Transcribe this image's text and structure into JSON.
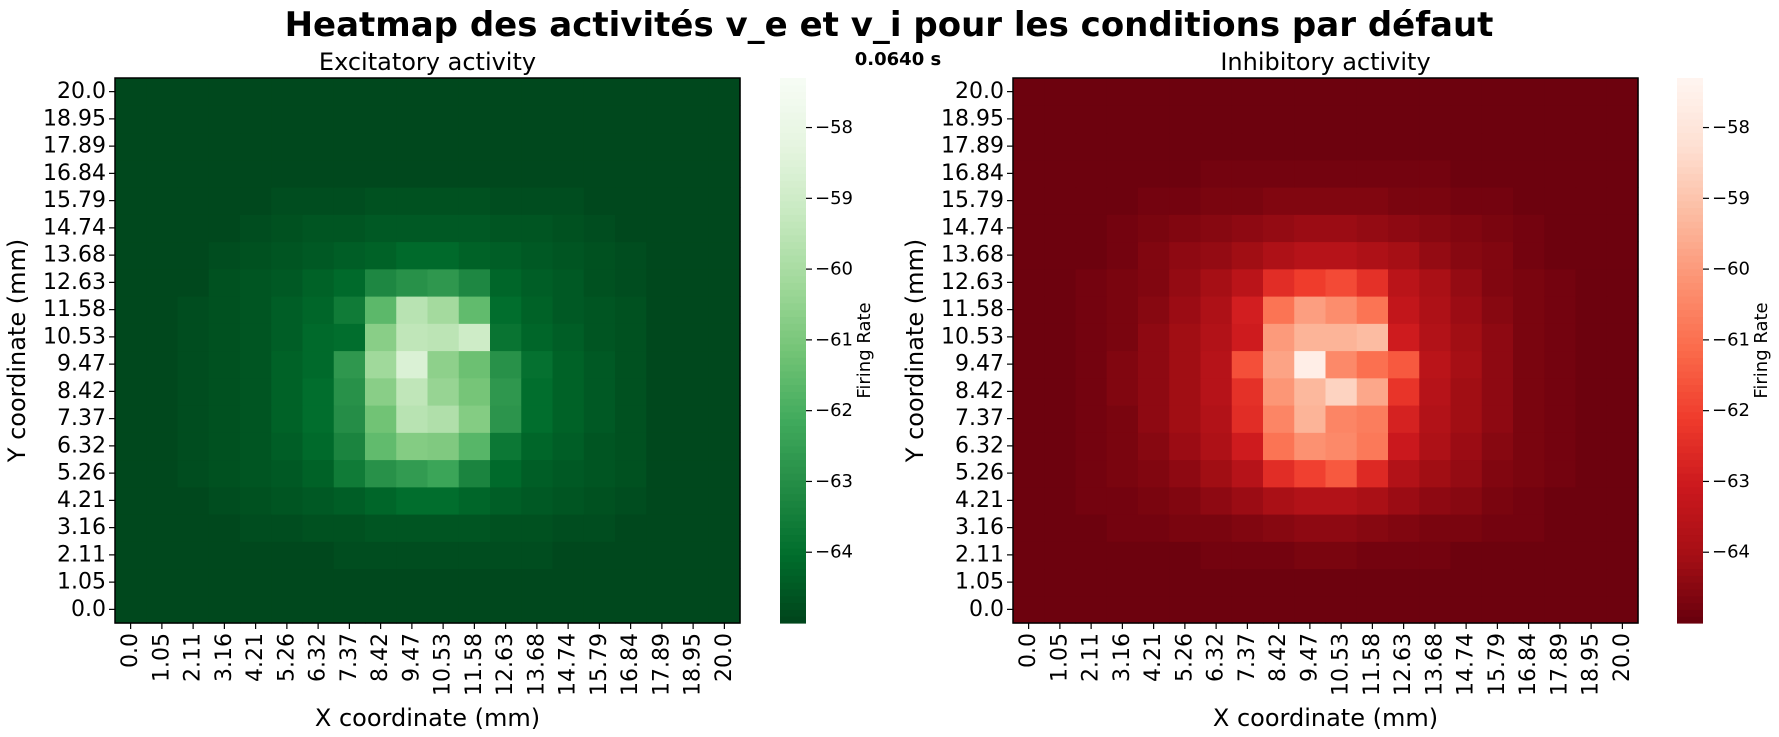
{
  "figure": {
    "title": "Heatmap des activités v_e et v_i pour les conditions par défaut",
    "time_label": "0.0640 s"
  },
  "chart_data": [
    {
      "type": "heatmap",
      "id": "excitatory",
      "title": "Excitatory activity",
      "xlabel": "X coordinate (mm)",
      "ylabel": "Y coordinate (mm)",
      "x_ticks": [
        "0.0",
        "1.05",
        "2.11",
        "3.16",
        "4.21",
        "5.26",
        "6.32",
        "7.37",
        "8.42",
        "9.47",
        "10.53",
        "11.58",
        "12.63",
        "13.68",
        "14.74",
        "15.79",
        "16.84",
        "17.89",
        "18.95",
        "20.0"
      ],
      "y_ticks": [
        "0.0",
        "1.05",
        "2.11",
        "3.16",
        "4.21",
        "5.26",
        "6.32",
        "7.37",
        "8.42",
        "9.47",
        "10.53",
        "11.58",
        "12.63",
        "13.68",
        "14.74",
        "15.79",
        "16.84",
        "17.89",
        "18.95",
        "20.0"
      ],
      "colormap": "Greens_r",
      "colorbar": {
        "label": "Firing Rate",
        "range": [
          -65.0,
          -57.3
        ],
        "ticks": [
          -64,
          -63,
          -62,
          -61,
          -60,
          -59,
          -58
        ]
      },
      "values": [
        [
          -64.9,
          -64.9,
          -64.9,
          -64.9,
          -64.9,
          -64.9,
          -64.9,
          -64.9,
          -64.9,
          -64.9,
          -64.9,
          -64.9,
          -64.9,
          -64.9,
          -64.9,
          -64.9,
          -64.9,
          -64.9,
          -64.9,
          -64.9
        ],
        [
          -64.9,
          -64.9,
          -64.9,
          -64.9,
          -64.9,
          -64.9,
          -64.9,
          -64.9,
          -64.9,
          -64.9,
          -64.9,
          -64.9,
          -64.9,
          -64.9,
          -64.9,
          -64.9,
          -64.9,
          -64.9,
          -64.9,
          -64.9
        ],
        [
          -64.9,
          -64.9,
          -64.9,
          -64.9,
          -64.9,
          -64.9,
          -64.9,
          -64.8,
          -64.8,
          -64.8,
          -64.8,
          -64.8,
          -64.8,
          -64.8,
          -64.9,
          -64.9,
          -64.9,
          -64.9,
          -64.9,
          -64.9
        ],
        [
          -64.9,
          -64.9,
          -64.9,
          -64.9,
          -64.8,
          -64.8,
          -64.7,
          -64.7,
          -64.6,
          -64.6,
          -64.6,
          -64.6,
          -64.7,
          -64.7,
          -64.8,
          -64.8,
          -64.9,
          -64.9,
          -64.9,
          -64.9
        ],
        [
          -64.9,
          -64.9,
          -64.9,
          -64.8,
          -64.7,
          -64.6,
          -64.5,
          -64.4,
          -64.2,
          -64.0,
          -64.0,
          -64.2,
          -64.4,
          -64.5,
          -64.6,
          -64.7,
          -64.8,
          -64.9,
          -64.9,
          -64.9
        ],
        [
          -64.9,
          -64.9,
          -64.8,
          -64.7,
          -64.6,
          -64.5,
          -64.3,
          -63.6,
          -62.9,
          -62.6,
          -62.3,
          -63.3,
          -64.1,
          -64.4,
          -64.5,
          -64.6,
          -64.7,
          -64.9,
          -64.9,
          -64.9
        ],
        [
          -64.9,
          -64.9,
          -64.8,
          -64.7,
          -64.6,
          -64.4,
          -64.1,
          -63.3,
          -61.5,
          -60.8,
          -60.9,
          -61.7,
          -63.7,
          -64.2,
          -64.4,
          -64.6,
          -64.7,
          -64.9,
          -64.9,
          -64.9
        ],
        [
          -64.9,
          -64.9,
          -64.8,
          -64.7,
          -64.6,
          -64.3,
          -64.0,
          -63.0,
          -61.2,
          -59.6,
          -59.8,
          -60.8,
          -62.8,
          -64.0,
          -64.3,
          -64.5,
          -64.7,
          -64.9,
          -64.9,
          -64.9
        ],
        [
          -64.9,
          -64.9,
          -64.8,
          -64.7,
          -64.6,
          -64.3,
          -64.0,
          -62.9,
          -60.7,
          -59.4,
          -60.4,
          -61.1,
          -62.7,
          -64.0,
          -64.3,
          -64.5,
          -64.7,
          -64.9,
          -64.9,
          -64.9
        ],
        [
          -64.9,
          -64.9,
          -64.8,
          -64.7,
          -64.6,
          -64.3,
          -64.1,
          -62.7,
          -60.2,
          -58.6,
          -60.6,
          -61.3,
          -62.9,
          -63.9,
          -64.3,
          -64.5,
          -64.7,
          -64.9,
          -64.9,
          -64.9
        ],
        [
          -64.9,
          -64.9,
          -64.8,
          -64.7,
          -64.6,
          -64.4,
          -64.1,
          -64.0,
          -60.7,
          -59.4,
          -59.5,
          -59.0,
          -63.8,
          -64.2,
          -64.4,
          -64.6,
          -64.7,
          -64.9,
          -64.9,
          -64.9
        ],
        [
          -64.9,
          -64.9,
          -64.8,
          -64.7,
          -64.6,
          -64.4,
          -64.2,
          -63.6,
          -61.6,
          -59.6,
          -60.1,
          -61.5,
          -64.0,
          -64.3,
          -64.5,
          -64.6,
          -64.7,
          -64.9,
          -64.9,
          -64.9
        ],
        [
          -64.9,
          -64.9,
          -64.9,
          -64.7,
          -64.6,
          -64.5,
          -64.3,
          -64.1,
          -63.2,
          -62.9,
          -62.7,
          -63.2,
          -64.2,
          -64.4,
          -64.5,
          -64.7,
          -64.8,
          -64.9,
          -64.9,
          -64.9
        ],
        [
          -64.9,
          -64.9,
          -64.9,
          -64.8,
          -64.7,
          -64.6,
          -64.5,
          -64.4,
          -64.3,
          -64.1,
          -64.1,
          -64.3,
          -64.4,
          -64.5,
          -64.6,
          -64.7,
          -64.8,
          -64.9,
          -64.9,
          -64.9
        ],
        [
          -64.9,
          -64.9,
          -64.9,
          -64.9,
          -64.8,
          -64.7,
          -64.6,
          -64.6,
          -64.5,
          -64.5,
          -64.5,
          -64.5,
          -64.6,
          -64.6,
          -64.7,
          -64.8,
          -64.9,
          -64.9,
          -64.9,
          -64.9
        ],
        [
          -64.9,
          -64.9,
          -64.9,
          -64.9,
          -64.9,
          -64.8,
          -64.8,
          -64.8,
          -64.7,
          -64.7,
          -64.7,
          -64.7,
          -64.8,
          -64.8,
          -64.8,
          -64.9,
          -64.9,
          -64.9,
          -64.9,
          -64.9
        ],
        [
          -64.9,
          -64.9,
          -64.9,
          -64.9,
          -64.9,
          -64.9,
          -64.9,
          -64.9,
          -64.9,
          -64.9,
          -64.9,
          -64.9,
          -64.9,
          -64.9,
          -64.9,
          -64.9,
          -64.9,
          -64.9,
          -64.9,
          -64.9
        ],
        [
          -64.9,
          -64.9,
          -64.9,
          -64.9,
          -64.9,
          -64.9,
          -64.9,
          -64.9,
          -64.9,
          -64.9,
          -64.9,
          -64.9,
          -64.9,
          -64.9,
          -64.9,
          -64.9,
          -64.9,
          -64.9,
          -64.9,
          -64.9
        ],
        [
          -64.9,
          -64.9,
          -64.9,
          -64.9,
          -64.9,
          -64.9,
          -64.9,
          -64.9,
          -64.9,
          -64.9,
          -64.9,
          -64.9,
          -64.9,
          -64.9,
          -64.9,
          -64.9,
          -64.9,
          -64.9,
          -64.9,
          -64.9
        ],
        [
          -64.9,
          -64.9,
          -64.9,
          -64.9,
          -64.9,
          -64.9,
          -64.9,
          -64.9,
          -64.9,
          -64.9,
          -64.9,
          -64.9,
          -64.9,
          -64.9,
          -64.9,
          -64.9,
          -64.9,
          -64.9,
          -64.9,
          -64.9
        ]
      ]
    },
    {
      "type": "heatmap",
      "id": "inhibitory",
      "title": "Inhibitory activity",
      "xlabel": "X coordinate (mm)",
      "ylabel": "Y coordinate (mm)",
      "x_ticks": [
        "0.0",
        "1.05",
        "2.11",
        "3.16",
        "4.21",
        "5.26",
        "6.32",
        "7.37",
        "8.42",
        "9.47",
        "10.53",
        "11.58",
        "12.63",
        "13.68",
        "14.74",
        "15.79",
        "16.84",
        "17.89",
        "18.95",
        "20.0"
      ],
      "y_ticks": [
        "0.0",
        "1.05",
        "2.11",
        "3.16",
        "4.21",
        "5.26",
        "6.32",
        "7.37",
        "8.42",
        "9.47",
        "10.53",
        "11.58",
        "12.63",
        "13.68",
        "14.74",
        "15.79",
        "16.84",
        "17.89",
        "18.95",
        "20.0"
      ],
      "colormap": "Reds_r",
      "colorbar": {
        "label": "Firing Rate",
        "range": [
          -65.0,
          -57.3
        ],
        "ticks": [
          -64,
          -63,
          -62,
          -61,
          -60,
          -59,
          -58
        ]
      },
      "values": [
        [
          -64.9,
          -64.9,
          -64.9,
          -64.9,
          -64.9,
          -64.9,
          -64.9,
          -64.9,
          -64.9,
          -64.9,
          -64.9,
          -64.9,
          -64.9,
          -64.9,
          -64.9,
          -64.9,
          -64.9,
          -64.9,
          -64.9,
          -64.9
        ],
        [
          -64.9,
          -64.9,
          -64.9,
          -64.9,
          -64.9,
          -64.9,
          -64.9,
          -64.9,
          -64.9,
          -64.9,
          -64.9,
          -64.9,
          -64.9,
          -64.9,
          -64.9,
          -64.9,
          -64.9,
          -64.9,
          -64.9,
          -64.9
        ],
        [
          -64.9,
          -64.9,
          -64.9,
          -64.9,
          -64.9,
          -64.9,
          -64.8,
          -64.8,
          -64.8,
          -64.7,
          -64.7,
          -64.8,
          -64.8,
          -64.8,
          -64.9,
          -64.9,
          -64.9,
          -64.9,
          -64.9,
          -64.9
        ],
        [
          -64.9,
          -64.9,
          -64.9,
          -64.8,
          -64.8,
          -64.7,
          -64.7,
          -64.6,
          -64.5,
          -64.4,
          -64.4,
          -64.5,
          -64.6,
          -64.7,
          -64.7,
          -64.8,
          -64.8,
          -64.9,
          -64.9,
          -64.9
        ],
        [
          -64.9,
          -64.9,
          -64.8,
          -64.8,
          -64.7,
          -64.6,
          -64.4,
          -64.2,
          -63.9,
          -63.7,
          -63.7,
          -63.9,
          -64.2,
          -64.4,
          -64.5,
          -64.7,
          -64.8,
          -64.9,
          -64.9,
          -64.9
        ],
        [
          -64.9,
          -64.9,
          -64.8,
          -64.7,
          -64.6,
          -64.4,
          -64.1,
          -63.6,
          -62.5,
          -62.0,
          -61.5,
          -62.6,
          -63.7,
          -64.1,
          -64.3,
          -64.6,
          -64.7,
          -64.8,
          -64.9,
          -64.9
        ],
        [
          -64.9,
          -64.9,
          -64.8,
          -64.7,
          -64.5,
          -64.2,
          -63.8,
          -63.0,
          -60.9,
          -60.2,
          -60.4,
          -60.8,
          -63.1,
          -63.8,
          -64.2,
          -64.5,
          -64.7,
          -64.8,
          -64.9,
          -64.9
        ],
        [
          -64.9,
          -64.9,
          -64.8,
          -64.7,
          -64.4,
          -64.1,
          -63.7,
          -62.5,
          -60.5,
          -59.4,
          -60.5,
          -60.7,
          -62.8,
          -63.7,
          -64.1,
          -64.4,
          -64.7,
          -64.8,
          -64.9,
          -64.9
        ],
        [
          -64.9,
          -64.9,
          -64.8,
          -64.6,
          -64.4,
          -64.1,
          -63.6,
          -62.4,
          -60.1,
          -59.3,
          -58.6,
          -59.7,
          -62.3,
          -63.6,
          -64.1,
          -64.4,
          -64.7,
          -64.8,
          -64.9,
          -64.9
        ],
        [
          -64.9,
          -64.9,
          -64.8,
          -64.6,
          -64.4,
          -64.1,
          -63.6,
          -61.7,
          -59.8,
          -57.6,
          -60.4,
          -61.0,
          -61.5,
          -63.5,
          -64.0,
          -64.4,
          -64.7,
          -64.8,
          -64.9,
          -64.9
        ],
        [
          -64.9,
          -64.9,
          -64.8,
          -64.7,
          -64.4,
          -64.1,
          -63.7,
          -63.0,
          -60.0,
          -59.4,
          -59.4,
          -59.2,
          -63.0,
          -63.7,
          -64.1,
          -64.4,
          -64.7,
          -64.8,
          -64.9,
          -64.9
        ],
        [
          -64.9,
          -64.9,
          -64.8,
          -64.7,
          -64.5,
          -64.2,
          -63.8,
          -62.9,
          -60.9,
          -59.9,
          -60.3,
          -60.9,
          -63.3,
          -63.8,
          -64.2,
          -64.5,
          -64.7,
          -64.8,
          -64.9,
          -64.9
        ],
        [
          -64.9,
          -64.9,
          -64.8,
          -64.7,
          -64.6,
          -64.3,
          -64.0,
          -63.5,
          -62.5,
          -62.1,
          -61.8,
          -62.4,
          -63.5,
          -63.9,
          -64.3,
          -64.6,
          -64.7,
          -64.8,
          -64.9,
          -64.9
        ],
        [
          -64.9,
          -64.9,
          -64.9,
          -64.8,
          -64.6,
          -64.4,
          -64.3,
          -64.1,
          -63.8,
          -63.6,
          -63.6,
          -63.8,
          -64.0,
          -64.3,
          -64.5,
          -64.6,
          -64.8,
          -64.9,
          -64.9,
          -64.9
        ],
        [
          -64.9,
          -64.9,
          -64.9,
          -64.8,
          -64.7,
          -64.6,
          -64.5,
          -64.4,
          -64.3,
          -64.2,
          -64.2,
          -64.3,
          -64.4,
          -64.5,
          -64.6,
          -64.7,
          -64.8,
          -64.9,
          -64.9,
          -64.9
        ],
        [
          -64.9,
          -64.9,
          -64.9,
          -64.9,
          -64.8,
          -64.8,
          -64.7,
          -64.7,
          -64.6,
          -64.6,
          -64.6,
          -64.6,
          -64.7,
          -64.7,
          -64.8,
          -64.8,
          -64.9,
          -64.9,
          -64.9,
          -64.9
        ],
        [
          -64.9,
          -64.9,
          -64.9,
          -64.9,
          -64.9,
          -64.9,
          -64.8,
          -64.8,
          -64.8,
          -64.8,
          -64.8,
          -64.8,
          -64.8,
          -64.8,
          -64.9,
          -64.9,
          -64.9,
          -64.9,
          -64.9,
          -64.9
        ],
        [
          -64.9,
          -64.9,
          -64.9,
          -64.9,
          -64.9,
          -64.9,
          -64.9,
          -64.9,
          -64.9,
          -64.9,
          -64.9,
          -64.9,
          -64.9,
          -64.9,
          -64.9,
          -64.9,
          -64.9,
          -64.9,
          -64.9,
          -64.9
        ],
        [
          -64.9,
          -64.9,
          -64.9,
          -64.9,
          -64.9,
          -64.9,
          -64.9,
          -64.9,
          -64.9,
          -64.9,
          -64.9,
          -64.9,
          -64.9,
          -64.9,
          -64.9,
          -64.9,
          -64.9,
          -64.9,
          -64.9,
          -64.9
        ],
        [
          -64.9,
          -64.9,
          -64.9,
          -64.9,
          -64.9,
          -64.9,
          -64.9,
          -64.9,
          -64.9,
          -64.9,
          -64.9,
          -64.9,
          -64.9,
          -64.9,
          -64.9,
          -64.9,
          -64.9,
          -64.9,
          -64.9,
          -64.9
        ]
      ]
    }
  ]
}
